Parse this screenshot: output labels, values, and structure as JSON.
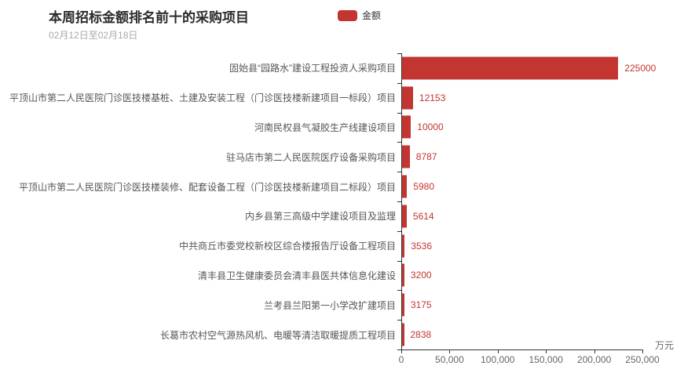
{
  "header": {
    "title": "本周招标金额排名前十的采购项目",
    "subtitle": "02月12日至02月18日",
    "legend": {
      "label": "金额",
      "color": "#c23531"
    }
  },
  "chart_data": {
    "type": "bar",
    "orientation": "horizontal",
    "title": "本周招标金额排名前十的采购项目",
    "subtitle": "02月12日至02月18日",
    "legend_entries": [
      "金额"
    ],
    "legend_position": "top-center",
    "series_name": "金额",
    "categories": [
      "固始县“园路水”建设工程投资人采购项目",
      "平顶山市第二人民医院门诊医技楼基桩、土建及安装工程（门诊医技楼新建项目一标段）项目",
      "河南民权县气凝胶生产线建设项目",
      "驻马店市第二人民医院医疗设备采购项目",
      "平顶山市第二人民医院门诊医技楼装修、配套设备工程（门诊医技楼新建项目二标段）项目",
      "内乡县第三高级中学建设项目及监理",
      "中共商丘市委党校新校区综合楼报告厅设备工程项目",
      "清丰县卫生健康委员会清丰县医共体信息化建设",
      "兰考县兰阳第一小学改扩建项目",
      "长葛市农村空气源热风机、电暖等清洁取暖提质工程项目"
    ],
    "values": [
      225000,
      12153,
      10000,
      8787,
      5980,
      5614,
      3536,
      3200,
      3175,
      2838
    ],
    "value_labels": [
      "225000",
      "12153",
      "10000",
      "8787",
      "5980",
      "5614",
      "3536",
      "3200",
      "3175",
      "2838"
    ],
    "xlim": [
      0,
      250000
    ],
    "x_ticks": [
      "0",
      "50,000",
      "100,000",
      "150,000",
      "200,000",
      "250,000"
    ],
    "xlabel_unit": "万元",
    "grid": false,
    "bar_color": "#c23531",
    "value_label_color": "#c23531",
    "axis_color": "#333333"
  }
}
